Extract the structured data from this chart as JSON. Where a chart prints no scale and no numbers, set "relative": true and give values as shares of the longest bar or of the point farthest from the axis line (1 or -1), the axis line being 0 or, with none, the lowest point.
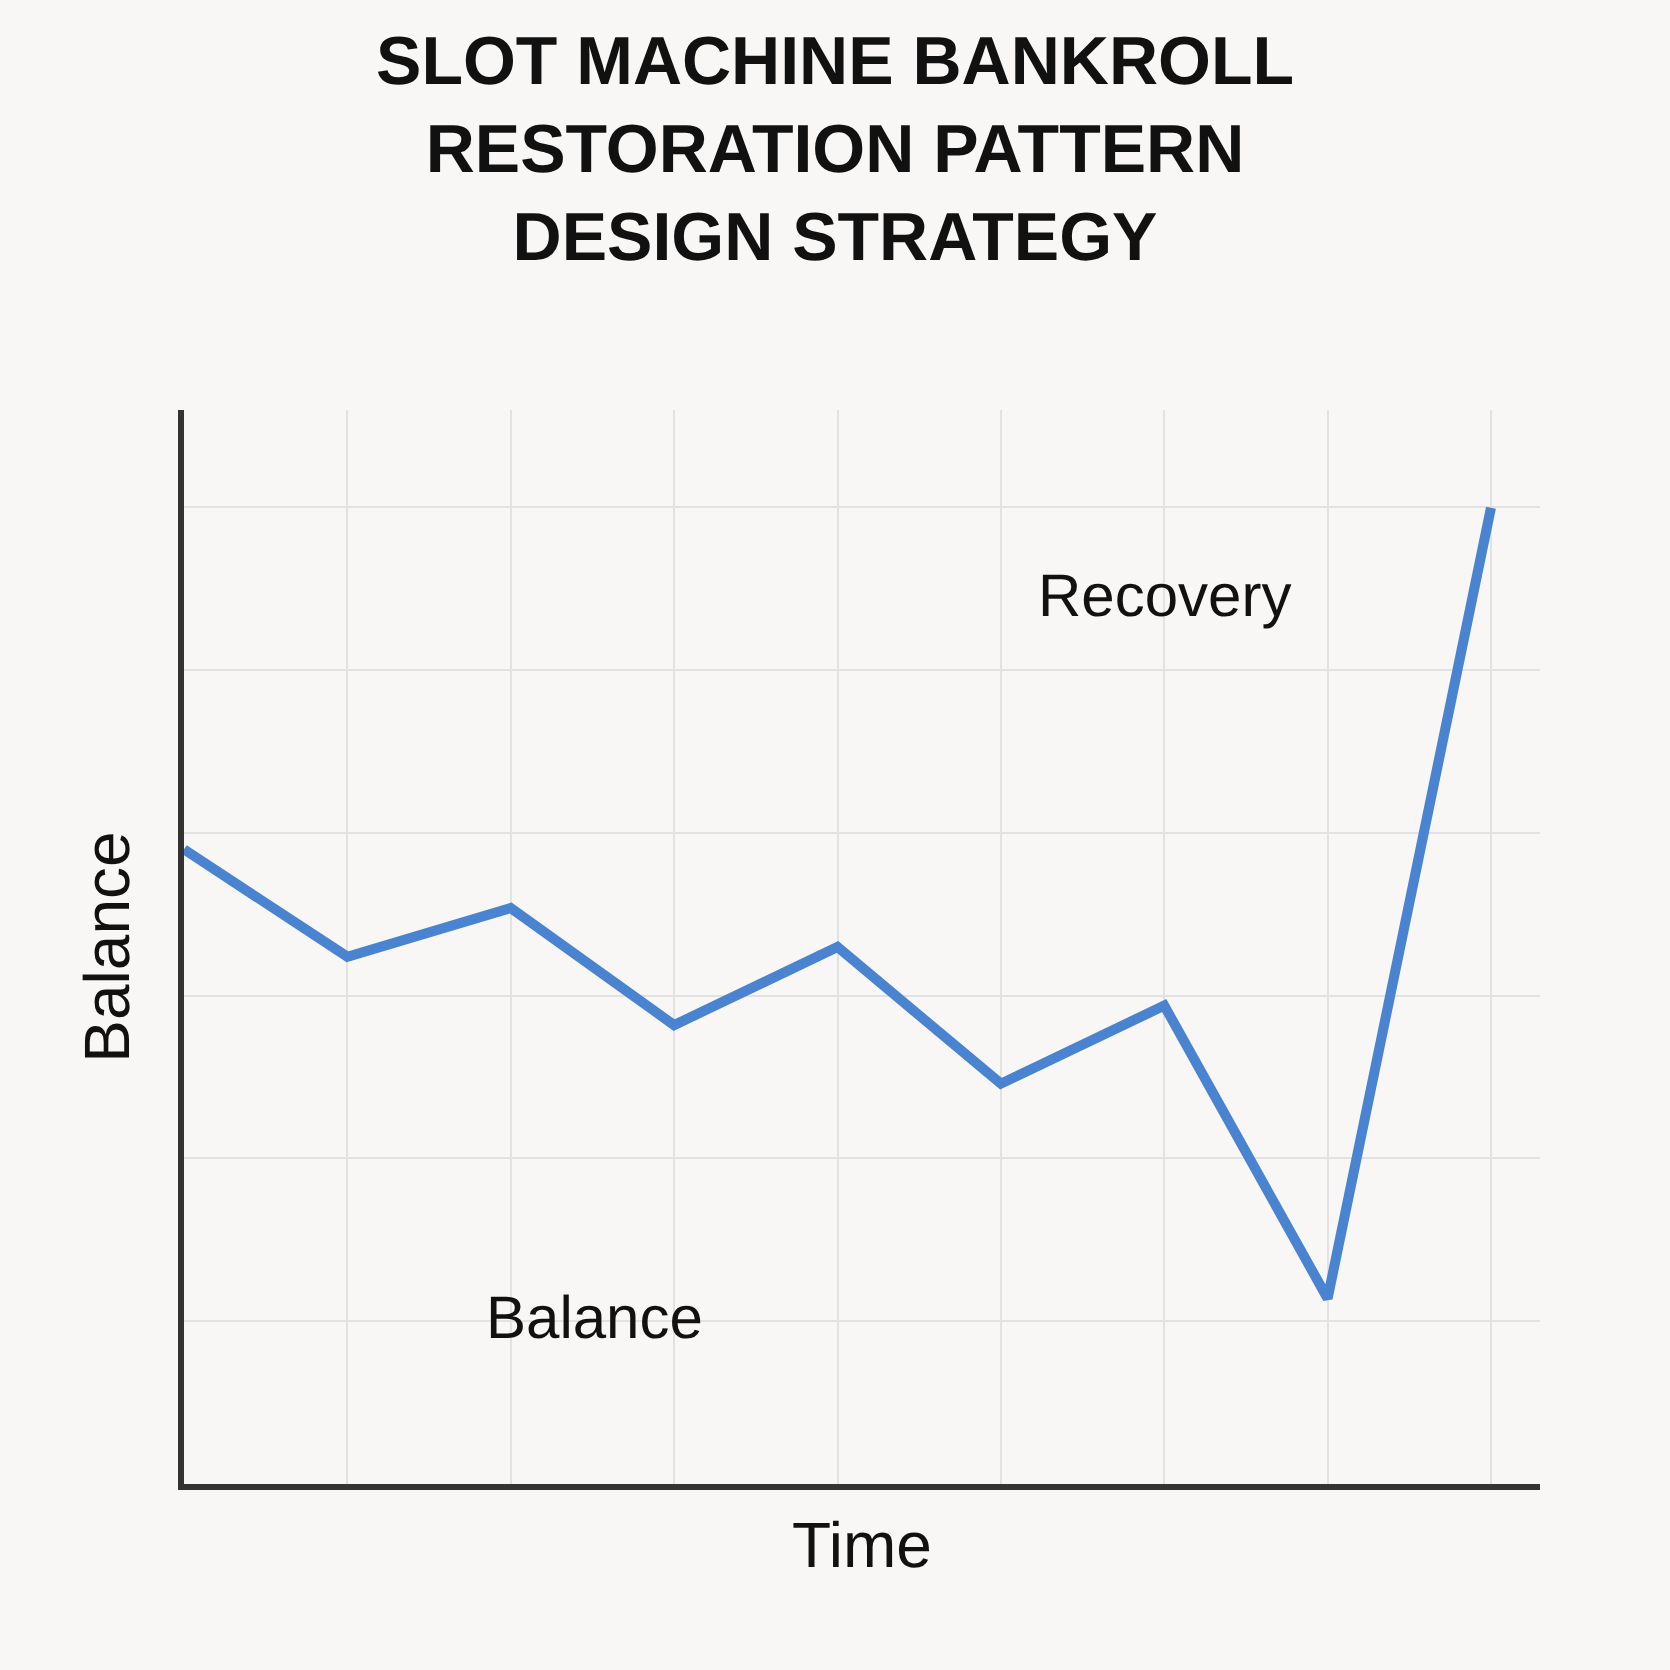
{
  "chart_data": {
    "type": "line",
    "title": "SLOT MACHINE BANKROLL\nRESTORATION PATTERN\nDESIGN STRATEGY",
    "xlabel": "Time",
    "ylabel": "Balance",
    "relative": true,
    "grid": true,
    "legend": false,
    "categories": [
      null,
      null,
      null,
      null,
      null,
      null,
      null,
      null,
      null
    ],
    "series": [
      {
        "color": "#4a84d0",
        "values": [
          0.65,
          0.54,
          0.59,
          0.47,
          0.55,
          0.41,
          0.49,
          0.19,
          1
        ]
      }
    ],
    "annotations": [
      "Recovery",
      "Balance"
    ]
  }
}
